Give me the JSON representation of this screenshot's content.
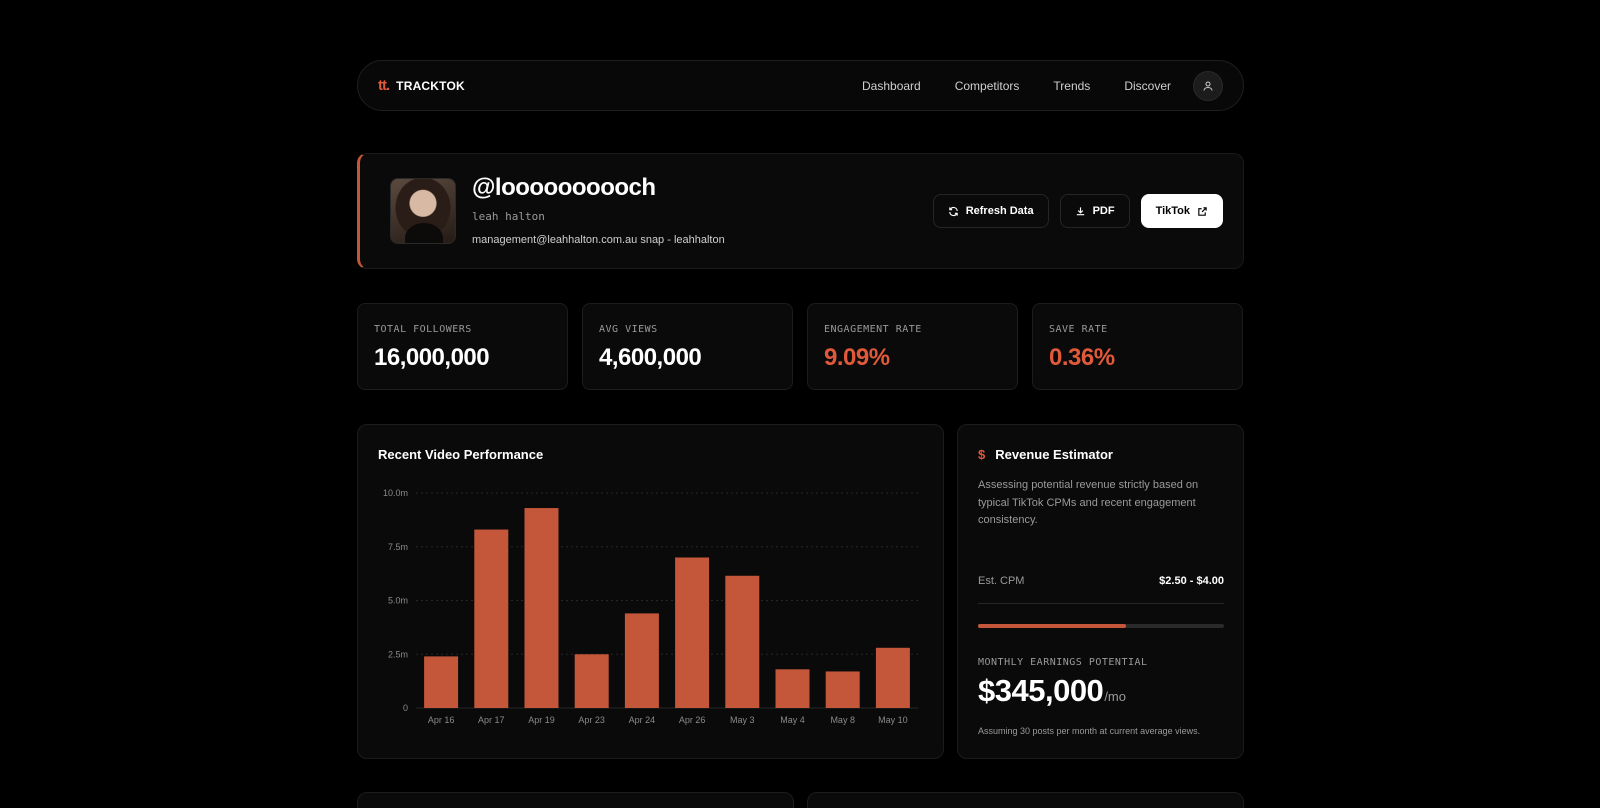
{
  "brand": {
    "mark": "tt.",
    "name": "TRACKTOK"
  },
  "nav": {
    "links": [
      "Dashboard",
      "Competitors",
      "Trends",
      "Discover"
    ]
  },
  "profile": {
    "handle": "@loooooooooch",
    "name": "leah halton",
    "bio": "management@leahhalton.com.au snap - leahhalton",
    "actions": {
      "refresh": "Refresh Data",
      "pdf": "PDF",
      "tiktok": "TikTok"
    }
  },
  "stats": [
    {
      "label": "TOTAL FOLLOWERS",
      "value": "16,000,000"
    },
    {
      "label": "AVG VIEWS",
      "value": "4,600,000"
    },
    {
      "label": "ENGAGEMENT RATE",
      "value": "9.09%"
    },
    {
      "label": "SAVE RATE",
      "value": "0.36%"
    }
  ],
  "chart_card": {
    "title": "Recent Video Performance"
  },
  "chart_data": {
    "type": "bar",
    "categories": [
      "Apr 16",
      "Apr 17",
      "Apr 19",
      "Apr 23",
      "Apr 24",
      "Apr 26",
      "May 3",
      "May 4",
      "May 8",
      "May 10"
    ],
    "values": [
      2.4,
      8.3,
      9.3,
      2.5,
      4.4,
      7.0,
      6.15,
      1.8,
      1.7,
      2.8
    ],
    "yticks": [
      "0",
      "2.5m",
      "5.0m",
      "7.5m",
      "10.0m"
    ],
    "ylim": [
      0,
      10
    ],
    "grid": true,
    "bar_color": "#c4573a"
  },
  "revenue": {
    "title": "Revenue Estimator",
    "description": "Assessing potential revenue strictly based on typical TikTok CPMs and recent engagement consistency.",
    "cpm_label": "Est. CPM",
    "cpm_value": "$2.50 - $4.00",
    "cpm_progress": 0.6,
    "potential_label": "MONTHLY EARNINGS POTENTIAL",
    "potential_value": "$345,000",
    "potential_unit": "/mo",
    "note": "Assuming 30 posts per month at current average views."
  },
  "colors": {
    "accent": "#e0593a",
    "bar": "#c4573a"
  }
}
